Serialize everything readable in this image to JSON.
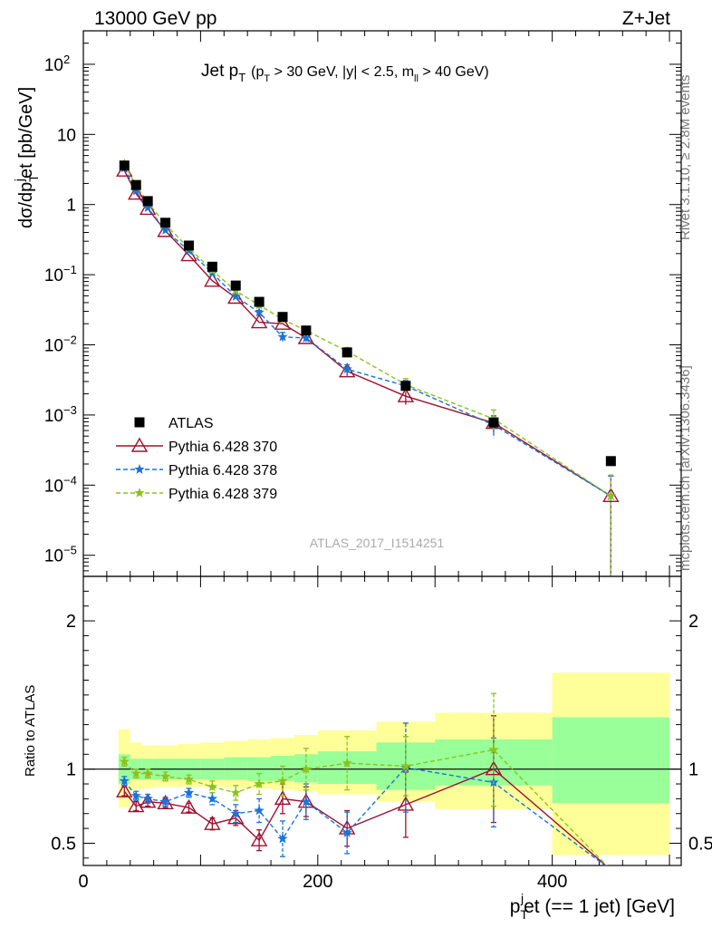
{
  "header": {
    "left": "13000 GeV pp",
    "right": "Z+Jet"
  },
  "side_labels": {
    "top": "Rivet 3.1.10, ≥ 2.8M events",
    "bottom": "mcplots.cern.ch [arXiv:1306.3436]"
  },
  "watermark": "ATLAS_2017_I1514251",
  "chart_data": [
    {
      "panel": "main",
      "type": "scatter",
      "title": "Jet p_T (p_T > 30 GeV, |y| < 2.5, m_ll > 40 GeV)",
      "title_parts": {
        "main": "Jet p",
        "main_sub": "T",
        "cond1": "(p",
        "cond1_sub": "T",
        "cond2": " > 30 GeV, |y| < 2.5, m",
        "cond2_sub": "ll",
        "cond3": " > 40 GeV)"
      },
      "ylabel": "dσ/dp_T^j et [pb/GeV]",
      "ylabel_parts": {
        "a": "dσ/dp",
        "sub": "T",
        "sup": "j",
        "b": "et [pb/GeV]"
      },
      "xlim": [
        0,
        510
      ],
      "ylim": [
        5e-06,
        300
      ],
      "y_scale": "log",
      "y_ticks": [
        {
          "value": 1e-05,
          "base": "10",
          "exp": "−5"
        },
        {
          "value": 0.0001,
          "base": "10",
          "exp": "−4"
        },
        {
          "value": 0.001,
          "base": "10",
          "exp": "−3"
        },
        {
          "value": 0.01,
          "base": "10",
          "exp": "−2"
        },
        {
          "value": 0.1,
          "base": "10",
          "exp": "−1"
        },
        {
          "value": 1,
          "base": "1",
          "exp": ""
        },
        {
          "value": 10,
          "base": "10",
          "exp": ""
        },
        {
          "value": 100,
          "base": "10",
          "exp": "2"
        }
      ],
      "legend_position": "bottom-left",
      "series": [
        {
          "name": "ATLAS",
          "color": "#000000",
          "style": "square",
          "x": [
            35,
            45,
            55,
            70,
            90,
            110,
            130,
            150,
            170,
            190,
            225,
            275,
            350,
            450
          ],
          "y": [
            3.6,
            1.9,
            1.12,
            0.55,
            0.26,
            0.13,
            0.07,
            0.041,
            0.025,
            0.016,
            0.0078,
            0.0026,
            0.00078,
            0.00022
          ]
        },
        {
          "name": "Pythia 6.428 370",
          "color": "#a01030",
          "style": "triangle-solid",
          "x": [
            35,
            45,
            55,
            70,
            90,
            110,
            130,
            150,
            170,
            190,
            225,
            275,
            350,
            450
          ],
          "y": [
            3.05,
            1.43,
            0.87,
            0.42,
            0.19,
            0.082,
            0.047,
            0.021,
            0.02,
            0.0125,
            0.0042,
            0.00185,
            0.00077,
            7e-05
          ],
          "yerr": [
            0,
            0,
            0,
            0,
            0,
            0,
            0,
            0,
            0,
            0,
            0.0006,
            0.00045,
            0.0002,
            6.5e-05
          ]
        },
        {
          "name": "Pythia 6.428 378",
          "color": "#1a74d8",
          "style": "star-dashed",
          "x": [
            35,
            45,
            55,
            70,
            90,
            110,
            130,
            150,
            170,
            190,
            225,
            275,
            350,
            450
          ],
          "y": [
            3.3,
            1.56,
            0.9,
            0.43,
            0.22,
            0.105,
            0.049,
            0.029,
            0.013,
            0.0125,
            0.0045,
            0.0026,
            0.00072,
            7e-05
          ],
          "yerr": [
            0,
            0,
            0,
            0,
            0,
            0,
            0,
            0.002,
            0.002,
            0.0015,
            0.0007,
            0.0005,
            0.00025,
            6.5e-05
          ]
        },
        {
          "name": "Pythia 6.428 379",
          "color": "#8cc21e",
          "style": "star-dashed",
          "x": [
            35,
            45,
            55,
            70,
            90,
            110,
            130,
            150,
            170,
            190,
            225,
            275,
            350,
            450
          ],
          "y": [
            3.8,
            1.85,
            1.08,
            0.52,
            0.24,
            0.115,
            0.059,
            0.037,
            0.023,
            0.016,
            0.0081,
            0.0027,
            0.00088,
            7e-05
          ],
          "yerr": [
            0,
            0,
            0,
            0,
            0,
            0,
            0,
            0,
            0,
            0,
            0.001,
            0.0006,
            0.0003,
            6.9e-05
          ]
        }
      ]
    },
    {
      "panel": "ratio",
      "type": "line",
      "ylabel": "Ratio to ATLAS",
      "xlabel": "p_T^j et (== 1 jet) [GeV]",
      "xlabel_parts": {
        "a": "p",
        "sub": "T",
        "sup": "j",
        "b": "et (== 1 jet) [GeV]"
      },
      "xlim": [
        0,
        510
      ],
      "ylim": [
        0.35,
        2.3
      ],
      "x_ticks": [
        0,
        200,
        400
      ],
      "y_ticks": [
        0.5,
        1,
        2
      ],
      "y_tick_labels": [
        "0.5",
        "1",
        "2"
      ],
      "reference_line": 1,
      "bands": {
        "x_edges": [
          30,
          40,
          50,
          60,
          80,
          100,
          120,
          140,
          160,
          180,
          200,
          250,
          300,
          400,
          500
        ],
        "yellow_low": [
          0.74,
          0.86,
          0.87,
          0.88,
          0.88,
          0.88,
          0.87,
          0.87,
          0.86,
          0.85,
          0.83,
          0.78,
          0.73,
          0.42
        ],
        "yellow_high": [
          1.27,
          1.18,
          1.16,
          1.16,
          1.17,
          1.18,
          1.19,
          1.2,
          1.21,
          1.23,
          1.26,
          1.32,
          1.38,
          1.65
        ],
        "green_low": [
          0.9,
          0.93,
          0.93,
          0.93,
          0.93,
          0.93,
          0.93,
          0.92,
          0.92,
          0.91,
          0.9,
          0.86,
          0.89,
          0.77
        ],
        "green_high": [
          1.1,
          1.07,
          1.07,
          1.07,
          1.07,
          1.07,
          1.08,
          1.08,
          1.09,
          1.1,
          1.12,
          1.18,
          1.2,
          1.35
        ]
      },
      "series": [
        {
          "name": "Pythia 6.428 370",
          "color": "#a01030",
          "style": "triangle-solid",
          "x": [
            35,
            45,
            55,
            70,
            90,
            110,
            130,
            150,
            170,
            190,
            225,
            275,
            350,
            450
          ],
          "y": [
            0.85,
            0.75,
            0.78,
            0.77,
            0.74,
            0.63,
            0.67,
            0.52,
            0.8,
            0.78,
            0.6,
            0.76,
            1.0,
            0.32
          ],
          "yerr": [
            0.03,
            0.03,
            0.03,
            0.03,
            0.03,
            0.04,
            0.05,
            0.07,
            0.1,
            0.1,
            0.12,
            0.22,
            0.36,
            0.3
          ]
        },
        {
          "name": "Pythia 6.428 378",
          "color": "#1a74d8",
          "style": "star-dashed",
          "x": [
            35,
            45,
            55,
            70,
            90,
            110,
            130,
            150,
            170,
            190,
            225,
            275,
            350,
            450
          ],
          "y": [
            0.92,
            0.82,
            0.8,
            0.78,
            0.84,
            0.8,
            0.7,
            0.72,
            0.53,
            0.78,
            0.57,
            1.01,
            0.91,
            0.32
          ],
          "yerr": [
            0.03,
            0.03,
            0.03,
            0.03,
            0.03,
            0.04,
            0.06,
            0.08,
            0.12,
            0.12,
            0.14,
            0.3,
            0.3,
            0.3
          ]
        },
        {
          "name": "Pythia 6.428 379",
          "color": "#8cc21e",
          "style": "star-dashed",
          "x": [
            35,
            45,
            55,
            70,
            90,
            110,
            130,
            150,
            170,
            190,
            225,
            275,
            350,
            450
          ],
          "y": [
            1.05,
            0.97,
            0.97,
            0.95,
            0.93,
            0.88,
            0.84,
            0.9,
            0.92,
            1.0,
            1.04,
            1.02,
            1.13,
            0.32
          ],
          "yerr": [
            0.03,
            0.03,
            0.03,
            0.03,
            0.03,
            0.04,
            0.05,
            0.07,
            0.1,
            0.14,
            0.18,
            0.2,
            0.38,
            0.3
          ]
        }
      ]
    }
  ]
}
